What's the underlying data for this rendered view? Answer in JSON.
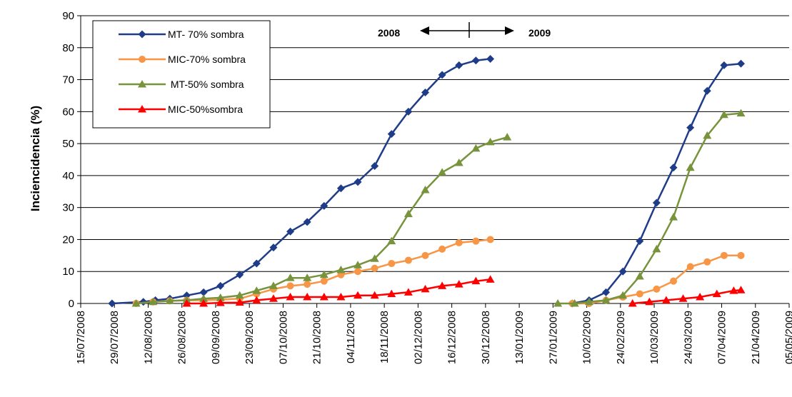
{
  "chart_data": {
    "type": "line",
    "title": "",
    "xlabel": "",
    "ylabel": "Inciencidencia (%)",
    "ylim": [
      0,
      90
    ],
    "yticks": [
      0,
      10,
      20,
      30,
      40,
      50,
      60,
      70,
      80,
      90
    ],
    "xlim": [
      "2008-07-15",
      "2009-05-05"
    ],
    "xtick_labels": [
      "15/07/2008",
      "29/07/2008",
      "12/08/2008",
      "26/08/2008",
      "09/09/2008",
      "23/09/2008",
      "07/10/2008",
      "21/10/2008",
      "04/11/2008",
      "18/11/2008",
      "02/12/2008",
      "16/12/2008",
      "30/12/2008",
      "13/01/2009",
      "27/01/2009",
      "10/02/2009",
      "24/02/2009",
      "10/03/2009",
      "24/03/2009",
      "07/04/2009",
      "21/04/2009",
      "05/05/2009"
    ],
    "grid": "horizontal",
    "legend_position": "top-left",
    "annotation": {
      "left": "2008",
      "right": "2009"
    },
    "series": [
      {
        "name": "MT- 70% sombra",
        "color": "#1F3C88",
        "marker": "diamond",
        "points": [
          [
            "2008-07-28",
            0
          ],
          [
            "2008-08-10",
            0.5
          ],
          [
            "2008-08-15",
            1
          ],
          [
            "2008-08-21",
            1.5
          ],
          [
            "2008-08-28",
            2.5
          ],
          [
            "2008-09-04",
            3.5
          ],
          [
            "2008-09-11",
            5.5
          ],
          [
            "2008-09-19",
            9
          ],
          [
            "2008-09-26",
            12.5
          ],
          [
            "2008-10-03",
            17.5
          ],
          [
            "2008-10-10",
            22.5
          ],
          [
            "2008-10-17",
            25.5
          ],
          [
            "2008-10-24",
            30.5
          ],
          [
            "2008-10-31",
            36
          ],
          [
            "2008-11-07",
            38
          ],
          [
            "2008-11-14",
            43
          ],
          [
            "2008-11-21",
            53
          ],
          [
            "2008-11-28",
            60
          ],
          [
            "2008-12-05",
            66
          ],
          [
            "2008-12-12",
            71.5
          ],
          [
            "2008-12-19",
            74.5
          ],
          [
            "2008-12-26",
            76
          ],
          [
            "2009-01-01",
            76.5
          ],
          null,
          [
            "2009-02-04",
            0
          ],
          [
            "2009-02-11",
            1
          ],
          [
            "2009-02-18",
            3.5
          ],
          [
            "2009-02-25",
            10
          ],
          [
            "2009-03-04",
            19.5
          ],
          [
            "2009-03-11",
            31.5
          ],
          [
            "2009-03-18",
            42.5
          ],
          [
            "2009-03-25",
            55
          ],
          [
            "2009-04-01",
            66.5
          ],
          [
            "2009-04-08",
            74.5
          ],
          [
            "2009-04-15",
            75
          ]
        ]
      },
      {
        "name": "MIC-70% sombra",
        "color": "#F79646",
        "marker": "circle",
        "points": [
          [
            "2008-08-07",
            0
          ],
          [
            "2008-08-14",
            0.5
          ],
          [
            "2008-08-21",
            0.8
          ],
          [
            "2008-08-28",
            1
          ],
          [
            "2008-09-04",
            1
          ],
          [
            "2008-09-11",
            1.2
          ],
          [
            "2008-09-19",
            1.5
          ],
          [
            "2008-09-26",
            3
          ],
          [
            "2008-10-03",
            4.5
          ],
          [
            "2008-10-10",
            5.5
          ],
          [
            "2008-10-17",
            6
          ],
          [
            "2008-10-24",
            7
          ],
          [
            "2008-10-31",
            9
          ],
          [
            "2008-11-07",
            10
          ],
          [
            "2008-11-14",
            11
          ],
          [
            "2008-11-21",
            12.5
          ],
          [
            "2008-11-28",
            13.5
          ],
          [
            "2008-12-05",
            15
          ],
          [
            "2008-12-12",
            17
          ],
          [
            "2008-12-19",
            19
          ],
          [
            "2008-12-26",
            19.5
          ],
          [
            "2009-01-01",
            20
          ],
          null,
          [
            "2009-02-04",
            0
          ],
          [
            "2009-02-11",
            0
          ],
          [
            "2009-02-18",
            1
          ],
          [
            "2009-02-25",
            2
          ],
          [
            "2009-03-04",
            3
          ],
          [
            "2009-03-11",
            4.5
          ],
          [
            "2009-03-18",
            7
          ],
          [
            "2009-03-25",
            11.5
          ],
          [
            "2009-04-01",
            13
          ],
          [
            "2009-04-08",
            15
          ],
          [
            "2009-04-15",
            15
          ]
        ]
      },
      {
        "name": " MT-50% sombra",
        "color": "#77933C",
        "marker": "triangle",
        "points": [
          [
            "2008-08-07",
            0
          ],
          [
            "2008-08-14",
            0.5
          ],
          [
            "2008-08-21",
            0.8
          ],
          [
            "2008-08-28",
            1
          ],
          [
            "2008-09-04",
            1.5
          ],
          [
            "2008-09-11",
            1.8
          ],
          [
            "2008-09-19",
            2.5
          ],
          [
            "2008-09-26",
            4
          ],
          [
            "2008-10-03",
            5.5
          ],
          [
            "2008-10-10",
            8
          ],
          [
            "2008-10-17",
            8
          ],
          [
            "2008-10-24",
            9
          ],
          [
            "2008-10-31",
            10.5
          ],
          [
            "2008-11-07",
            12
          ],
          [
            "2008-11-14",
            14
          ],
          [
            "2008-11-21",
            19.5
          ],
          [
            "2008-11-28",
            28
          ],
          [
            "2008-12-05",
            35.5
          ],
          [
            "2008-12-12",
            41
          ],
          [
            "2008-12-19",
            44
          ],
          [
            "2008-12-26",
            48.5
          ],
          [
            "2009-01-01",
            50.5
          ],
          [
            "2009-01-08",
            52
          ],
          null,
          [
            "2009-01-29",
            0
          ],
          [
            "2009-02-05",
            0
          ],
          [
            "2009-02-11",
            0.5
          ],
          [
            "2009-02-18",
            1
          ],
          [
            "2009-02-25",
            2.5
          ],
          [
            "2009-03-04",
            8.5
          ],
          [
            "2009-03-11",
            17
          ],
          [
            "2009-03-18",
            27
          ],
          [
            "2009-03-25",
            42.5
          ],
          [
            "2009-04-01",
            52.5
          ],
          [
            "2009-04-08",
            59
          ],
          [
            "2009-04-15",
            59.5
          ]
        ]
      },
      {
        "name": "MIC-50%sombra",
        "color": "#FF0000",
        "marker": "triangle",
        "points": [
          [
            "2008-08-28",
            0
          ],
          [
            "2008-09-04",
            0
          ],
          [
            "2008-09-11",
            0.2
          ],
          [
            "2008-09-19",
            0.3
          ],
          [
            "2008-09-26",
            1
          ],
          [
            "2008-10-03",
            1.5
          ],
          [
            "2008-10-10",
            2
          ],
          [
            "2008-10-17",
            2
          ],
          [
            "2008-10-24",
            2
          ],
          [
            "2008-10-31",
            2
          ],
          [
            "2008-11-07",
            2.5
          ],
          [
            "2008-11-14",
            2.5
          ],
          [
            "2008-11-21",
            3
          ],
          [
            "2008-11-28",
            3.5
          ],
          [
            "2008-12-05",
            4.5
          ],
          [
            "2008-12-12",
            5.5
          ],
          [
            "2008-12-19",
            6
          ],
          [
            "2008-12-26",
            7
          ],
          [
            "2009-01-01",
            7.5
          ],
          null,
          [
            "2009-03-01",
            0
          ],
          [
            "2009-03-08",
            0.5
          ],
          [
            "2009-03-15",
            1
          ],
          [
            "2009-03-22",
            1.5
          ],
          [
            "2009-03-29",
            2
          ],
          [
            "2009-04-05",
            3
          ],
          [
            "2009-04-12",
            4
          ],
          [
            "2009-04-15",
            4.2
          ]
        ]
      }
    ]
  }
}
